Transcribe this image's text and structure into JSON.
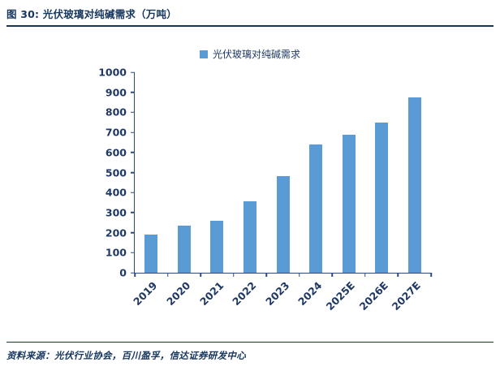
{
  "header": {
    "title": "图 30:  光伏玻璃对纯碱需求（万吨）"
  },
  "footer": {
    "source": "资料来源：光伏行业协会，百川盈孚，信达证券研发中心"
  },
  "colors": {
    "accent_navy": "#17365D",
    "bar_blue": "#5B9BD5"
  },
  "chart_data": {
    "type": "bar",
    "title": "光伏玻璃对纯碱需求（万吨）",
    "legend": "光伏玻璃对纯碱需求",
    "categories": [
      "2019",
      "2020",
      "2021",
      "2022",
      "2023",
      "2024",
      "2025E",
      "2026E",
      "2027E"
    ],
    "values": [
      190,
      235,
      260,
      355,
      480,
      640,
      690,
      750,
      875
    ],
    "xlabel": "",
    "ylabel": "",
    "ylim": [
      0,
      1000
    ],
    "ytick_step": 100,
    "bar_color": "#5B9BD5",
    "grid": false,
    "legend_position": "top"
  }
}
